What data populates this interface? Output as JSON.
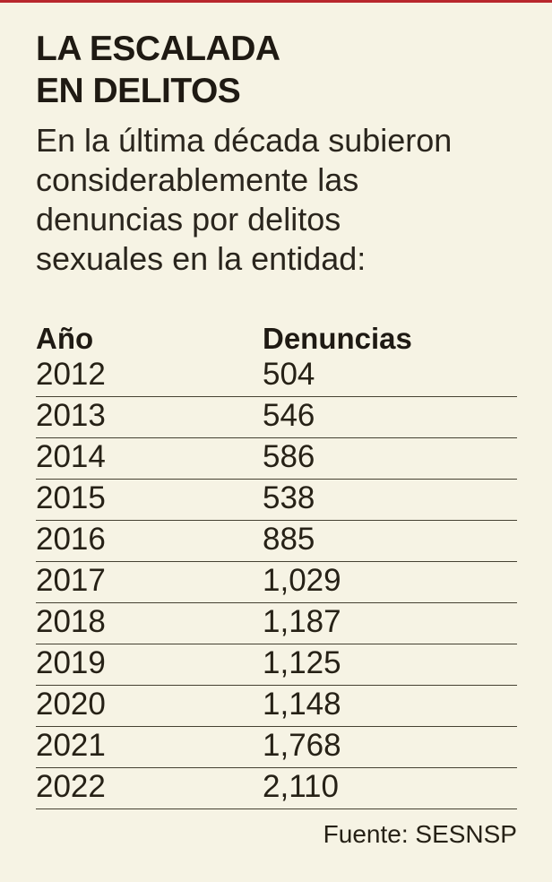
{
  "page": {
    "background_color": "#f6f3e4",
    "top_bar_color": "#b8272c"
  },
  "header": {
    "title_line1": "LA ESCALADA",
    "title_line2": "EN DELITOS",
    "subtitle_lines": [
      "En la última década subieron",
      "considerablemente las",
      "denuncias por delitos",
      "sexuales en la entidad:"
    ]
  },
  "table": {
    "columns": [
      "Año",
      "Denuncias"
    ],
    "rows": [
      {
        "year": "2012",
        "denuncias": "504"
      },
      {
        "year": "2013",
        "denuncias": "546"
      },
      {
        "year": "2014",
        "denuncias": "586"
      },
      {
        "year": "2015",
        "denuncias": "538"
      },
      {
        "year": "2016",
        "denuncias": "885"
      },
      {
        "year": "2017",
        "denuncias": "1,029"
      },
      {
        "year": "2018",
        "denuncias": "1,187"
      },
      {
        "year": "2019",
        "denuncias": "1,125"
      },
      {
        "year": "2020",
        "denuncias": "1,148"
      },
      {
        "year": "2021",
        "denuncias": "1,768"
      },
      {
        "year": "2022",
        "denuncias": "2,110"
      }
    ]
  },
  "footer": {
    "source": "Fuente: SESNSP"
  },
  "chart_data": {
    "type": "table",
    "title": "LA ESCALADA EN DELITOS",
    "subtitle": "En la última década subieron considerablemente las denuncias por delitos sexuales en la entidad:",
    "columns": [
      "Año",
      "Denuncias"
    ],
    "categories": [
      "2012",
      "2013",
      "2014",
      "2015",
      "2016",
      "2017",
      "2018",
      "2019",
      "2020",
      "2021",
      "2022"
    ],
    "values": [
      504,
      546,
      586,
      538,
      885,
      1029,
      1187,
      1125,
      1148,
      1768,
      2110
    ],
    "source": "Fuente: SESNSP"
  }
}
